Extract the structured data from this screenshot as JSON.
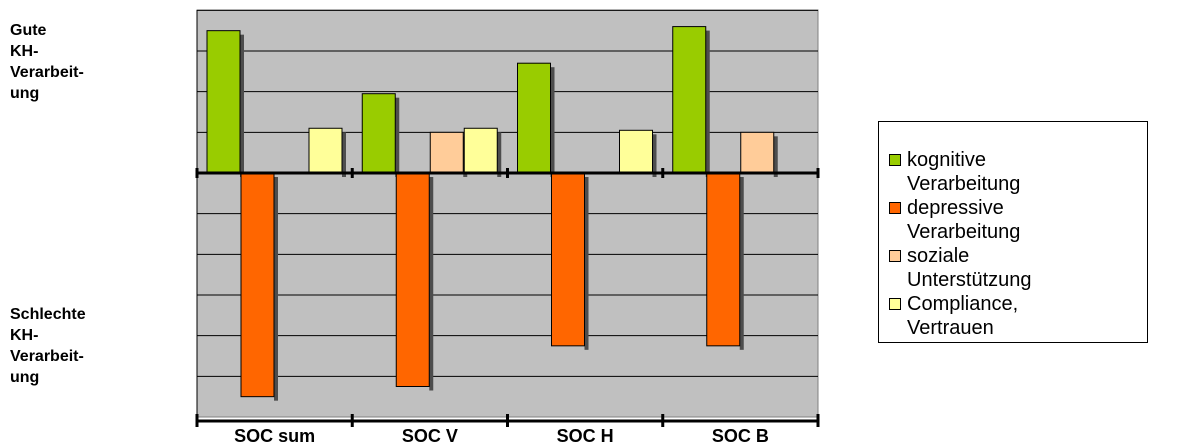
{
  "side_labels": {
    "top": [
      "Gute",
      "KH-",
      "Verarbeit-",
      "ung"
    ],
    "bottom": [
      "Schlechte",
      "KH-",
      "Verarbeit-",
      "ung"
    ]
  },
  "chart_data": {
    "type": "bar",
    "categories": [
      "SOC sum",
      "SOC V",
      "SOC H",
      "SOC B"
    ],
    "series": [
      {
        "name": "kognitive Verarbeitung",
        "color": "#99CC00",
        "values": [
          3.5,
          1.95,
          2.7,
          3.6
        ]
      },
      {
        "name": "depressive Verarbeitung",
        "color": "#FF6600",
        "values": [
          -5.5,
          -5.25,
          -4.25,
          -4.25
        ]
      },
      {
        "name": "soziale Unterstützung",
        "color": "#FFCC99",
        "values": [
          0,
          1.0,
          0,
          1.0
        ]
      },
      {
        "name": "Compliance, Vertrauen",
        "color": "#FFFF99",
        "values": [
          1.1,
          1.1,
          1.05,
          0
        ]
      }
    ],
    "ylim": [
      -6,
      4
    ],
    "grid": true,
    "plot_background": "#C0C0C0",
    "legend_position": "right",
    "title": "",
    "xlabel": "",
    "ylabel": ""
  },
  "legend": {
    "items": [
      {
        "line1": "kognitive",
        "line2": "Verarbeitung",
        "color": "#99CC00"
      },
      {
        "line1": "depressive",
        "line2": "Verarbeitung",
        "color": "#FF6600"
      },
      {
        "line1": "soziale",
        "line2": "Unterstützung",
        "color": "#FFCC99"
      },
      {
        "line1": "Compliance,",
        "line2": "Vertrauen",
        "color": "#FFFF99"
      }
    ]
  }
}
